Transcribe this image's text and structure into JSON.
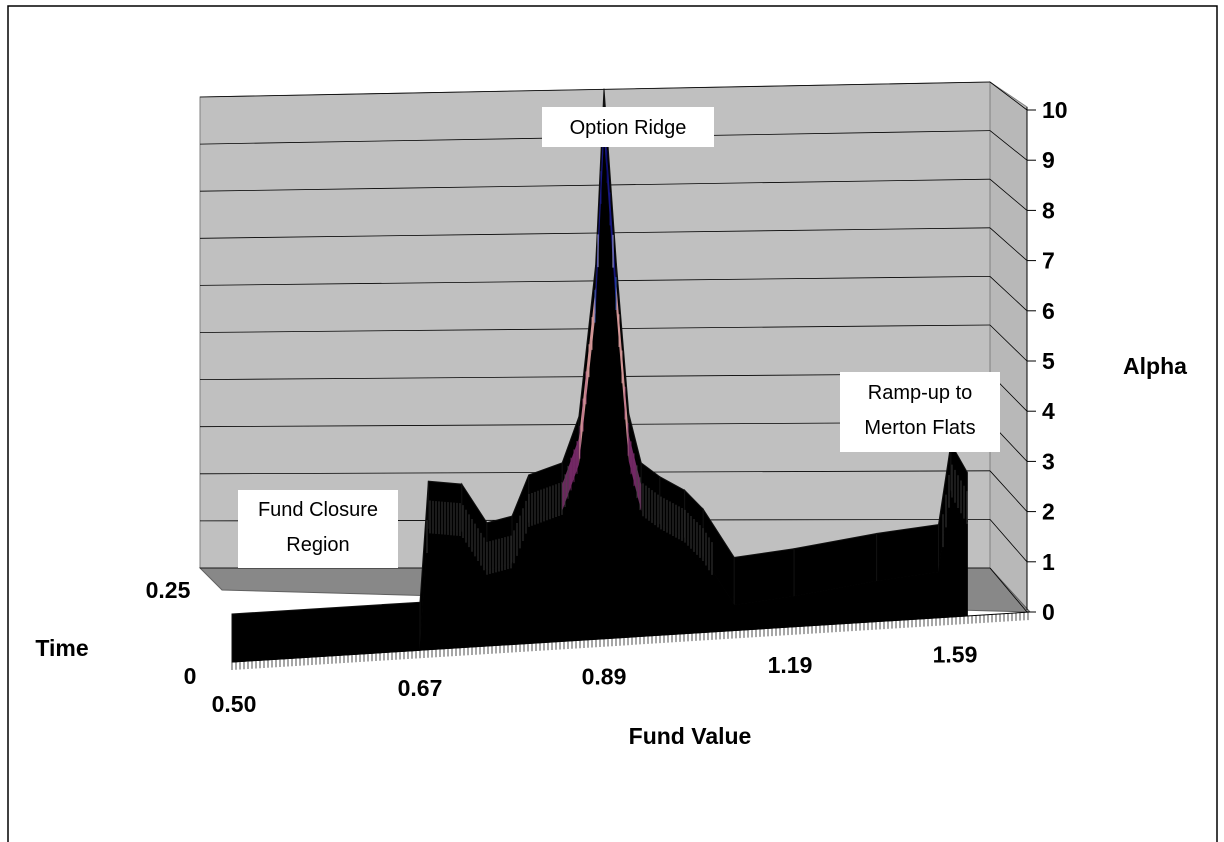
{
  "chart_data": {
    "type": "surface",
    "title": "",
    "xlabel": "Fund Value",
    "ylabel": "Time",
    "zlabel": "Alpha",
    "x_ticks": [
      "0.50",
      "0.67",
      "0.89",
      "1.19",
      "1.59"
    ],
    "y_ticks": [
      "0",
      "0.25"
    ],
    "z_ticks": [
      "0",
      "1",
      "2",
      "3",
      "4",
      "5",
      "6",
      "7",
      "8",
      "9",
      "10"
    ],
    "zlim": [
      0,
      10
    ],
    "grid": true,
    "annotations": [
      {
        "lines": [
          "Option Ridge"
        ]
      },
      {
        "lines": [
          "Ramp-up to",
          "Merton Flats"
        ]
      },
      {
        "lines": [
          "Fund Closure",
          "Region"
        ]
      }
    ],
    "profile": {
      "note_unit": "alpha vs fund value along front edge",
      "fund_value": [
        0.5,
        0.67,
        0.68,
        0.72,
        0.75,
        0.78,
        0.8,
        0.84,
        0.86,
        0.88,
        0.89,
        0.91,
        0.93,
        0.95,
        0.98,
        1.02,
        1.05,
        1.1,
        1.2,
        1.4,
        1.55,
        1.58,
        1.62
      ],
      "alpha": [
        0.0,
        0.0,
        2.4,
        2.3,
        1.5,
        1.6,
        2.4,
        2.6,
        3.5,
        6.5,
        10.0,
        6.5,
        3.5,
        2.5,
        2.2,
        1.9,
        1.5,
        0.5,
        0.6,
        0.8,
        0.9,
        2.5,
        1.9
      ]
    }
  }
}
